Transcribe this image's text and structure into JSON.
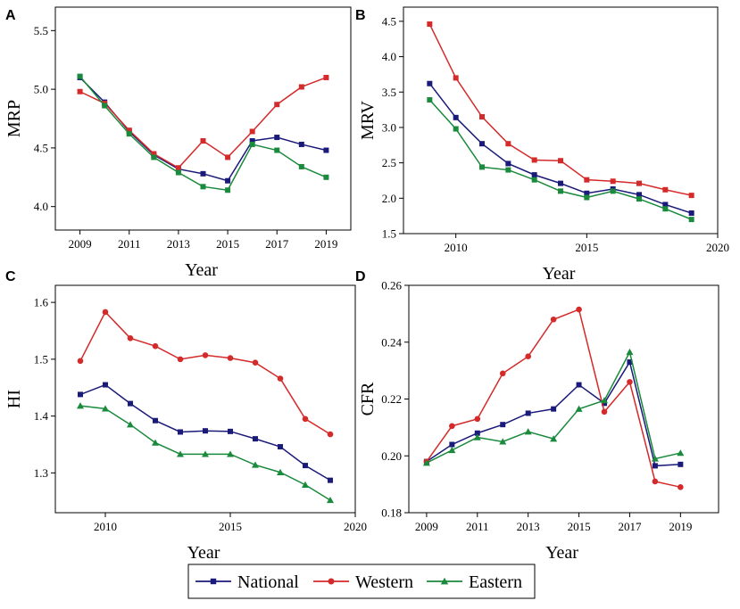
{
  "colors": {
    "National": "#1a1a7a",
    "Western": "#d42a2a",
    "Eastern": "#1a8a3c"
  },
  "legend": [
    {
      "name": "National",
      "marker": "square"
    },
    {
      "name": "Western",
      "marker": "circle"
    },
    {
      "name": "Eastern",
      "marker": "triangle"
    }
  ],
  "chart_data": [
    {
      "panel": "A",
      "type": "line",
      "xlabel": "Year",
      "ylabel": "MRP",
      "xlim": [
        2008,
        2020
      ],
      "ylim": [
        3.8,
        5.7
      ],
      "xticks": [
        2009,
        2011,
        2013,
        2015,
        2017,
        2019
      ],
      "xtick_labels": [
        "2009",
        "2011",
        "2013",
        "2015",
        "2017",
        "2019"
      ],
      "yticks": [
        4.0,
        4.5,
        5.0,
        5.5
      ],
      "ytick_labels": [
        "4.0",
        "4.5",
        "5.0",
        "5.5"
      ],
      "x": [
        2009,
        2010,
        2011,
        2012,
        2013,
        2014,
        2015,
        2016,
        2017,
        2018,
        2019
      ],
      "series": [
        {
          "name": "National",
          "marker": "square",
          "values": [
            5.1,
            4.89,
            4.64,
            4.44,
            4.32,
            4.28,
            4.22,
            4.56,
            4.59,
            4.53,
            4.48
          ]
        },
        {
          "name": "Western",
          "marker": "square",
          "values": [
            4.98,
            4.88,
            4.65,
            4.45,
            4.33,
            4.56,
            4.42,
            4.64,
            4.87,
            5.02,
            5.1
          ]
        },
        {
          "name": "Eastern",
          "marker": "square",
          "values": [
            5.11,
            4.86,
            4.62,
            4.42,
            4.29,
            4.17,
            4.14,
            4.53,
            4.48,
            4.34,
            4.25
          ]
        }
      ]
    },
    {
      "panel": "B",
      "type": "line",
      "xlabel": "Year",
      "ylabel": "MRV",
      "xlim": [
        2008,
        2020
      ],
      "ylim": [
        1.5,
        4.7
      ],
      "xticks": [
        2010,
        2015,
        2020
      ],
      "xtick_labels": [
        "2010",
        "2015",
        "2020"
      ],
      "yticks": [
        1.5,
        2.0,
        2.5,
        3.0,
        3.5,
        4.0,
        4.5
      ],
      "ytick_labels": [
        "1.5",
        "2.0",
        "2.5",
        "3.0",
        "3.5",
        "4.0",
        "4.5"
      ],
      "x": [
        2009,
        2010,
        2011,
        2012,
        2013,
        2014,
        2015,
        2016,
        2017,
        2018,
        2019
      ],
      "series": [
        {
          "name": "National",
          "marker": "square",
          "values": [
            3.62,
            3.14,
            2.77,
            2.49,
            2.33,
            2.21,
            2.07,
            2.13,
            2.05,
            1.91,
            1.79
          ]
        },
        {
          "name": "Western",
          "marker": "square",
          "values": [
            4.46,
            3.7,
            3.15,
            2.77,
            2.54,
            2.53,
            2.26,
            2.24,
            2.21,
            2.12,
            2.04
          ]
        },
        {
          "name": "Eastern",
          "marker": "square",
          "values": [
            3.39,
            2.98,
            2.44,
            2.4,
            2.26,
            2.1,
            2.01,
            2.1,
            1.99,
            1.85,
            1.7
          ]
        }
      ]
    },
    {
      "panel": "C",
      "type": "line",
      "xlabel": "Year",
      "ylabel": "HI",
      "xlim": [
        2008,
        2020
      ],
      "ylim": [
        1.23,
        1.63
      ],
      "xticks": [
        2010,
        2015,
        2020
      ],
      "xtick_labels": [
        "2010",
        "2015",
        "2020"
      ],
      "yticks": [
        1.3,
        1.4,
        1.5,
        1.6
      ],
      "ytick_labels": [
        "1.3",
        "1.4",
        "1.5",
        "1.6"
      ],
      "x": [
        2009,
        2010,
        2011,
        2012,
        2013,
        2014,
        2015,
        2016,
        2017,
        2018,
        2019
      ],
      "series": [
        {
          "name": "National",
          "marker": "square",
          "values": [
            1.438,
            1.455,
            1.422,
            1.392,
            1.372,
            1.374,
            1.373,
            1.36,
            1.346,
            1.313,
            1.287
          ]
        },
        {
          "name": "Western",
          "marker": "circle",
          "values": [
            1.497,
            1.583,
            1.537,
            1.523,
            1.5,
            1.507,
            1.502,
            1.494,
            1.466,
            1.395,
            1.368
          ]
        },
        {
          "name": "Eastern",
          "marker": "triangle",
          "values": [
            1.418,
            1.413,
            1.385,
            1.353,
            1.333,
            1.333,
            1.333,
            1.314,
            1.301,
            1.279,
            1.252
          ]
        }
      ]
    },
    {
      "panel": "D",
      "type": "line",
      "xlabel": "Year",
      "ylabel": "CFR",
      "xlim": [
        2008.3,
        2020.5
      ],
      "ylim": [
        0.18,
        0.26
      ],
      "xticks": [
        2009,
        2011,
        2013,
        2015,
        2017,
        2019
      ],
      "xtick_labels": [
        "2009",
        "2011",
        "2013",
        "2015",
        "2017",
        "2019"
      ],
      "yticks": [
        0.18,
        0.2,
        0.22,
        0.24,
        0.26
      ],
      "ytick_labels": [
        "0.18",
        "0.20",
        "0.22",
        "0.24",
        "0.26"
      ],
      "x": [
        2009,
        2010,
        2011,
        2012,
        2013,
        2014,
        2015,
        2016,
        2017,
        2018,
        2019
      ],
      "series": [
        {
          "name": "National",
          "marker": "square",
          "values": [
            0.198,
            0.204,
            0.208,
            0.211,
            0.215,
            0.2165,
            0.225,
            0.2185,
            0.233,
            0.1965,
            0.197
          ]
        },
        {
          "name": "Western",
          "marker": "circle",
          "values": [
            0.198,
            0.2105,
            0.213,
            0.229,
            0.235,
            0.248,
            0.2515,
            0.2155,
            0.226,
            0.191,
            0.189
          ]
        },
        {
          "name": "Eastern",
          "marker": "triangle",
          "values": [
            0.1975,
            0.202,
            0.2065,
            0.205,
            0.2085,
            0.206,
            0.2165,
            0.2195,
            0.2365,
            0.199,
            0.201
          ]
        }
      ]
    }
  ]
}
